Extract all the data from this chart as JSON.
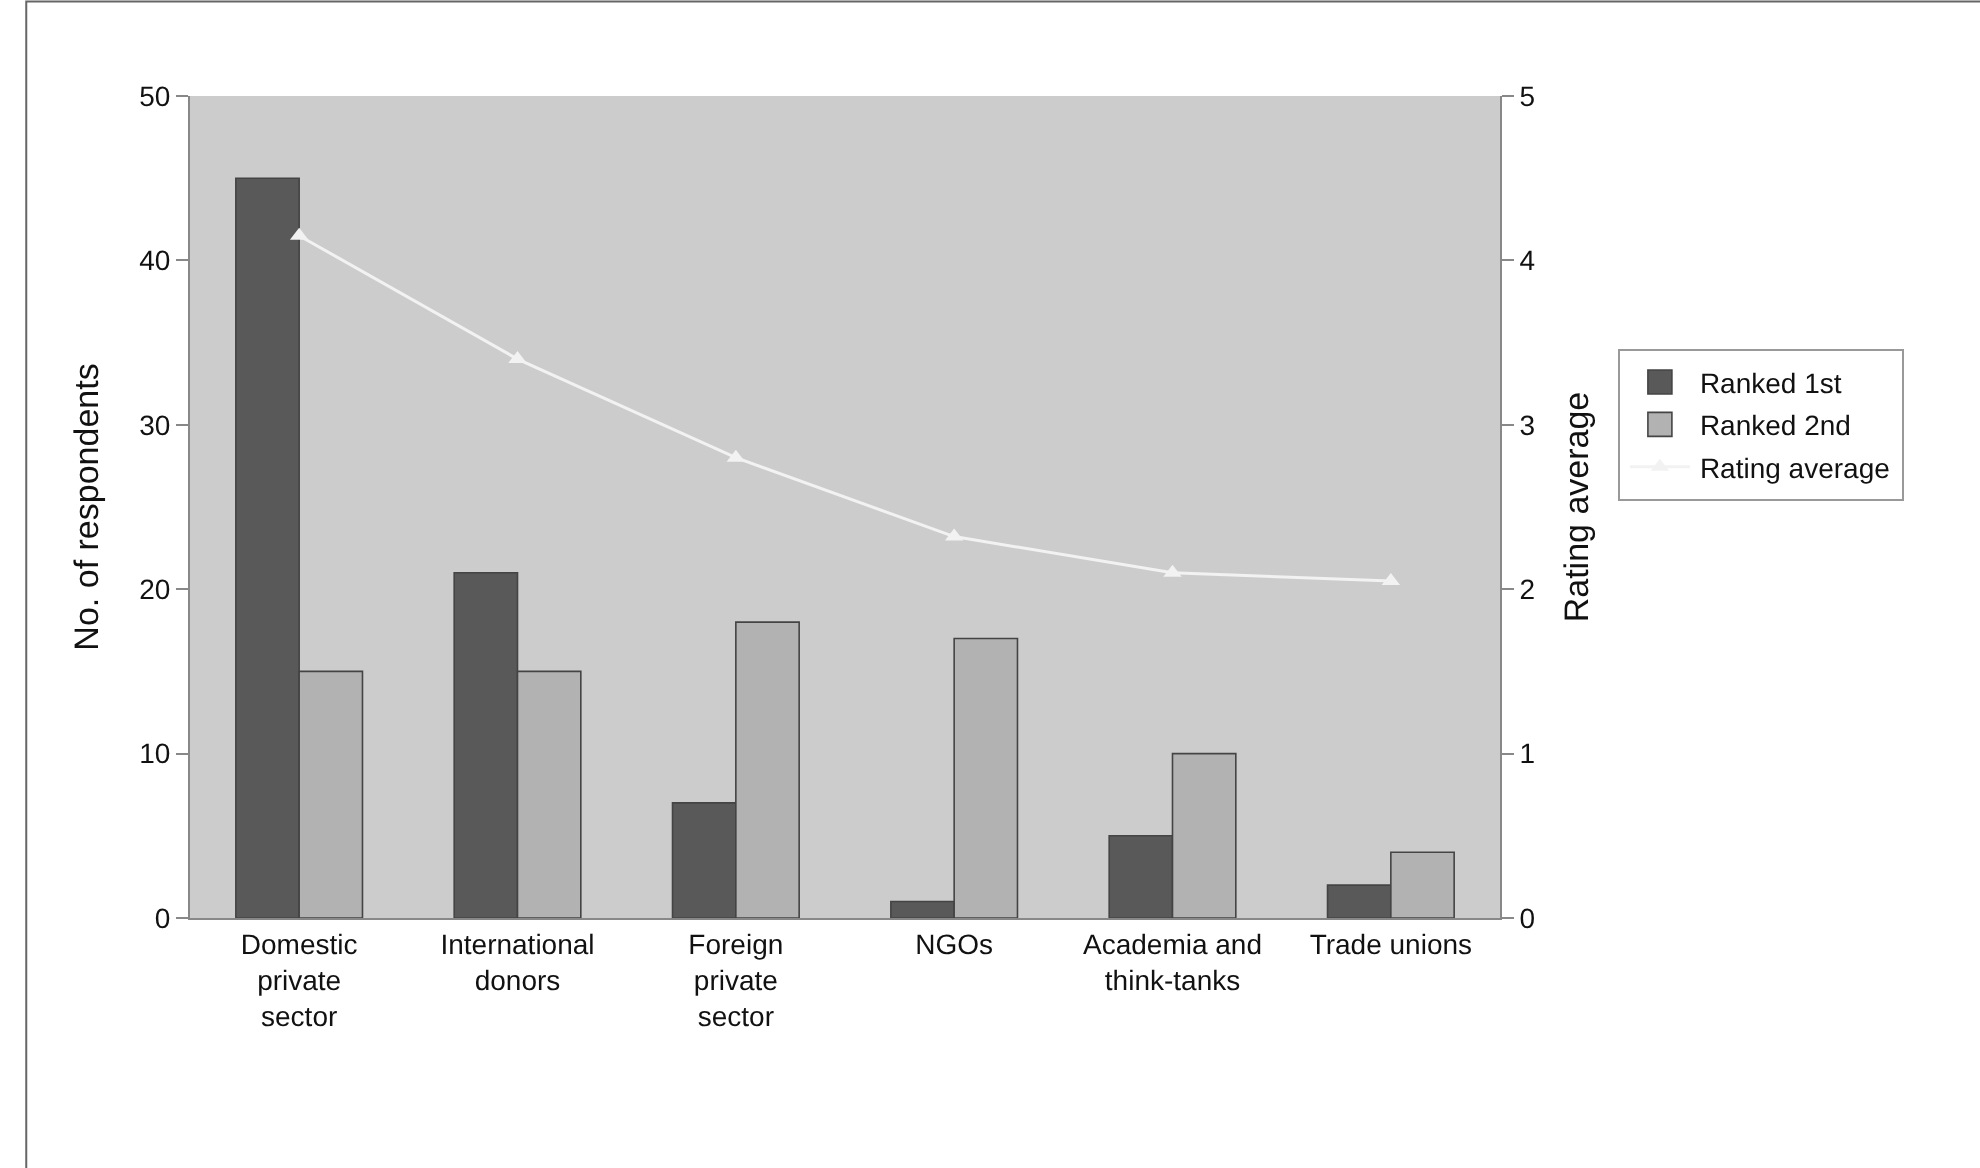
{
  "chart_data": {
    "type": "bar",
    "categories": [
      "Domestic private sector",
      "International donors",
      "Foreign private sector",
      "NGOs",
      "Academia and think-tanks",
      "Trade unions"
    ],
    "series": [
      {
        "name": "Ranked 1st",
        "color": "#595959",
        "values": [
          45,
          21,
          7,
          1,
          5,
          2
        ]
      },
      {
        "name": "Ranked 2nd",
        "color": "#b2b2b2",
        "values": [
          15,
          15,
          18,
          17,
          10,
          4
        ]
      },
      {
        "name": "Rating average",
        "type": "line",
        "axis": "y2",
        "color": "#f2f2f2",
        "marker": "triangle",
        "values": [
          4.15,
          3.4,
          2.8,
          2.32,
          2.1,
          2.05
        ]
      }
    ],
    "ylabel": "No. of respondents",
    "y2label": "Rating average",
    "ylim": [
      0,
      50
    ],
    "yticks": [
      0,
      10,
      20,
      30,
      40,
      50
    ],
    "y2lim": [
      0,
      5
    ],
    "y2ticks": [
      0,
      1,
      2,
      3,
      4,
      5
    ],
    "grid": false,
    "legend": "right"
  }
}
